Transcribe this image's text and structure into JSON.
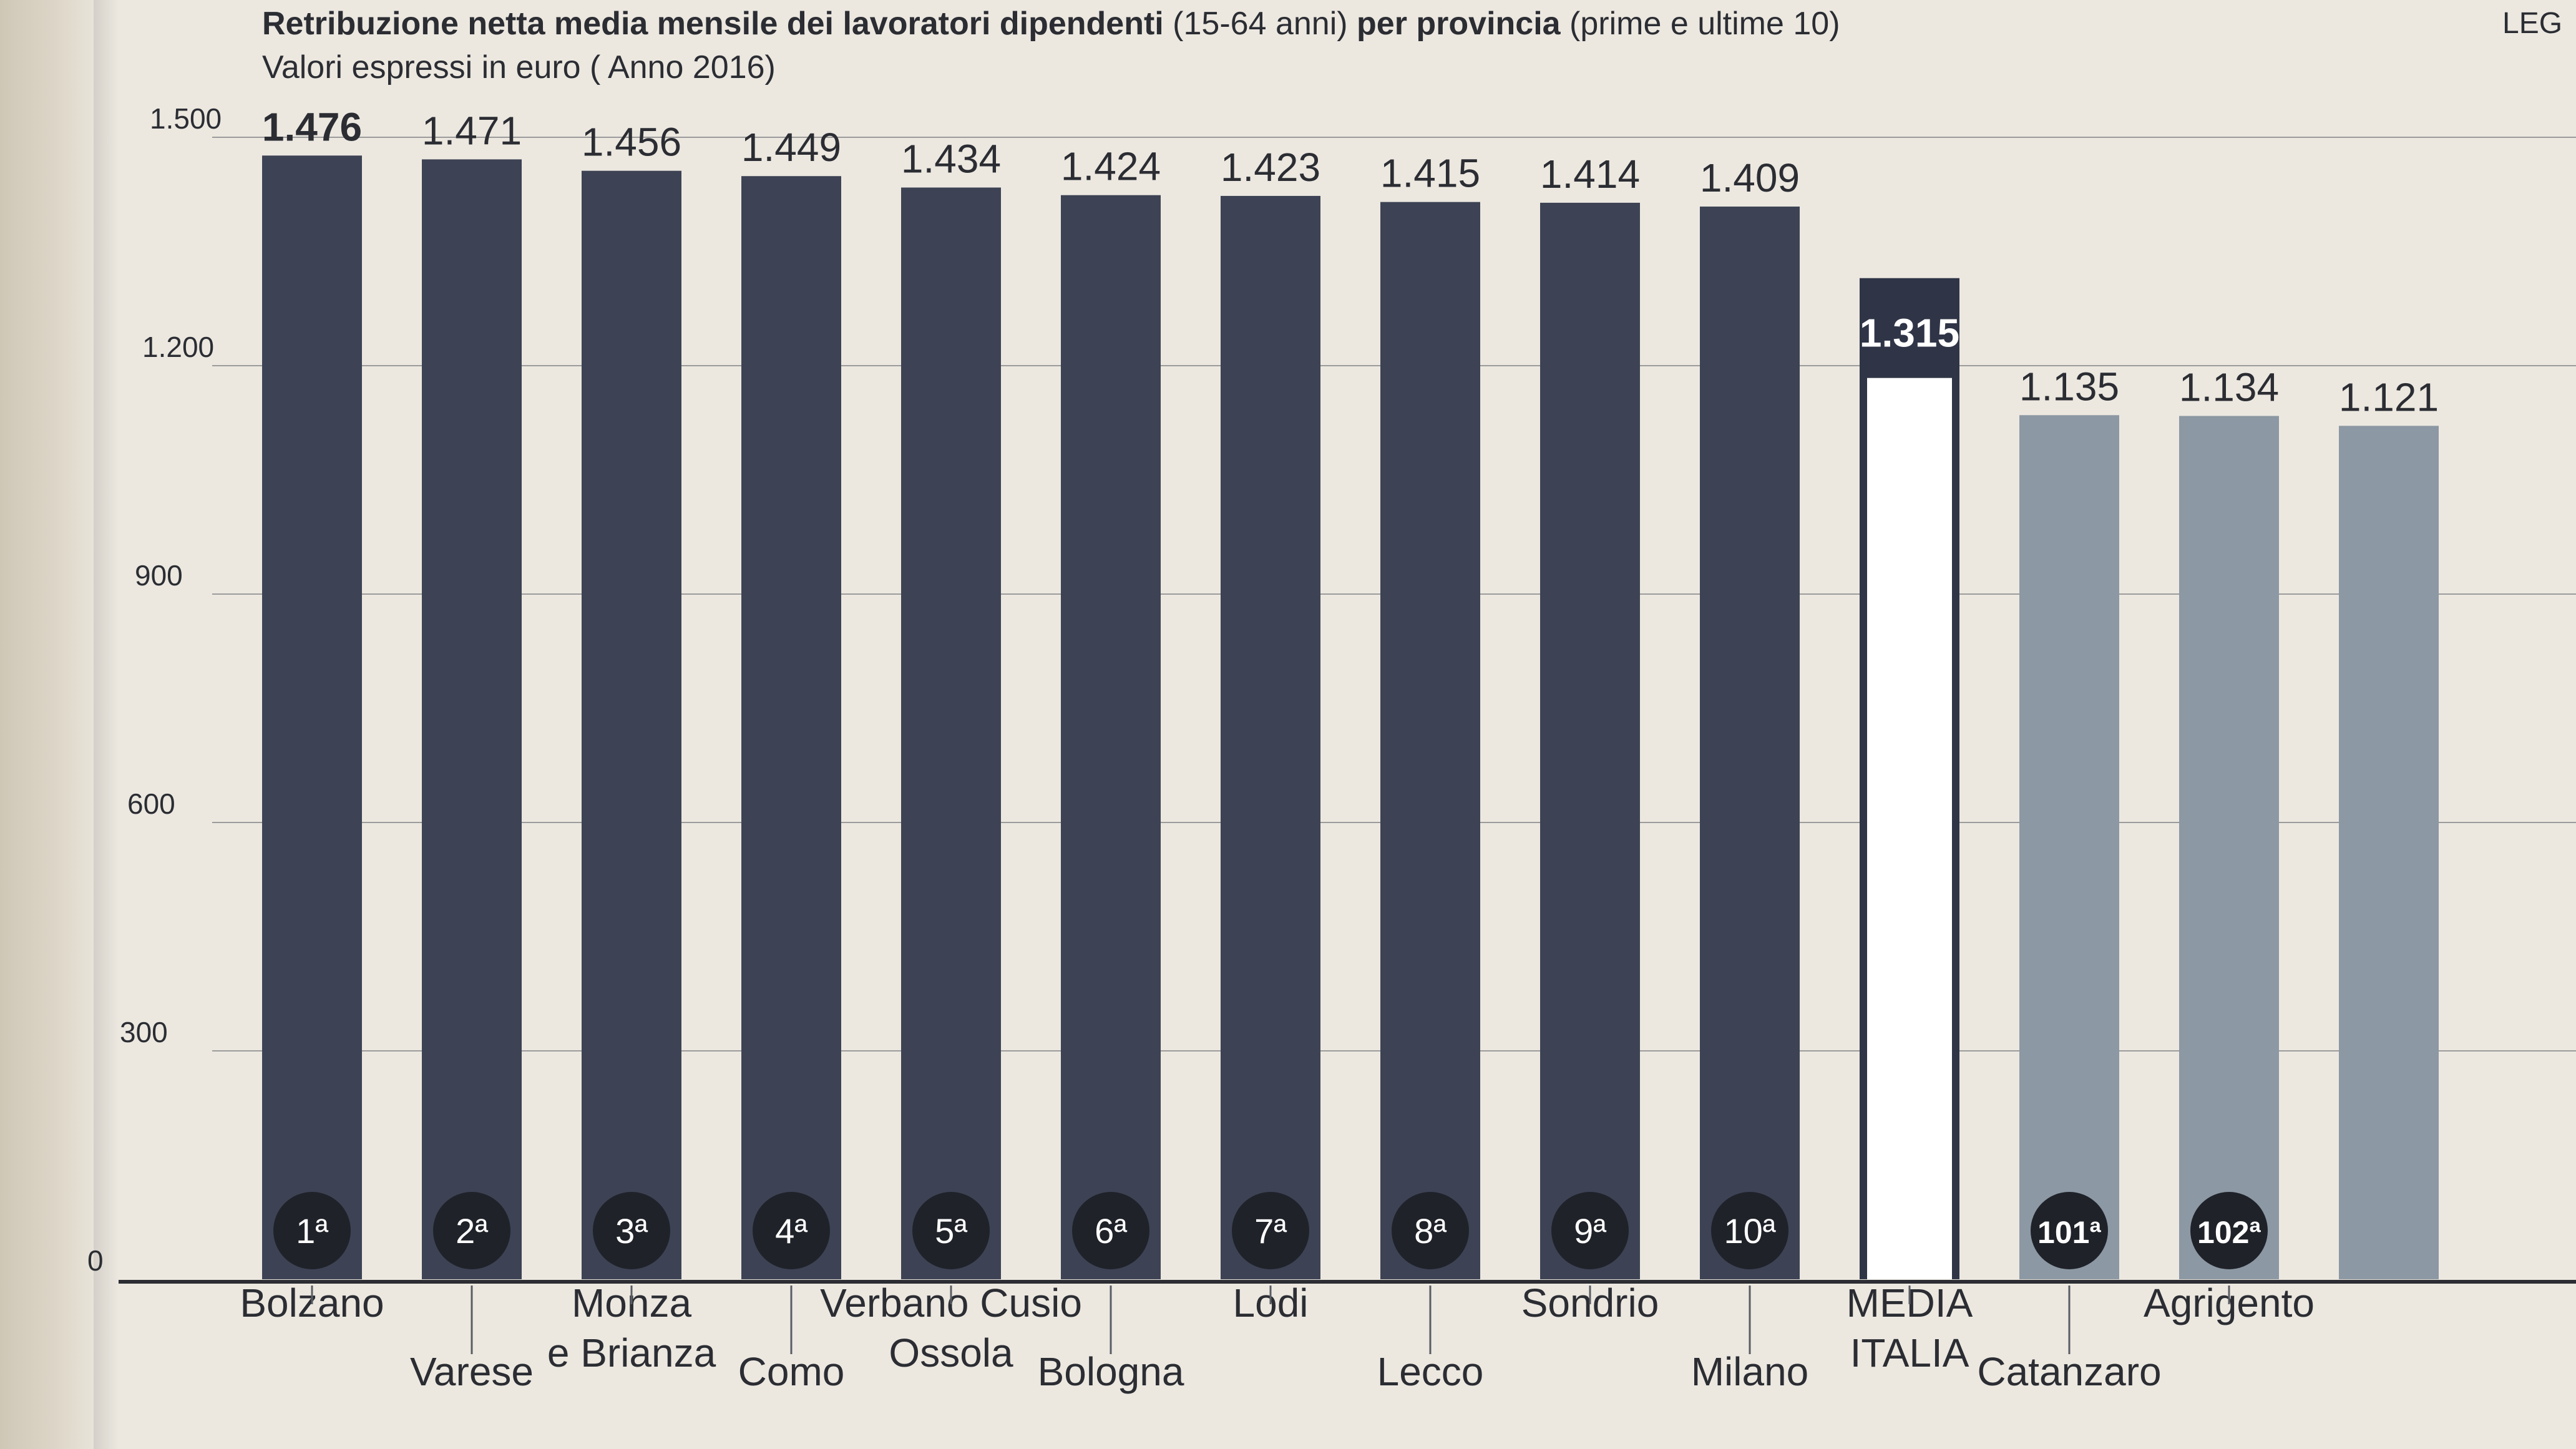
{
  "header": {
    "title_part1": "Retribuzione netta media mensile dei lavoratori dipendenti",
    "title_part2": " (15-64 anni) ",
    "title_part3": "per provincia",
    "title_part4": " (prime e ultime 10)",
    "subtitle": "Valori espressi in euro ( Anno 2016)",
    "corner_tag": "LEG"
  },
  "chart_data": {
    "type": "bar",
    "title": "Retribuzione netta media mensile dei lavoratori dipendenti (15-64 anni) per provincia (prime e ultime 10)",
    "subtitle": "Valori espressi in euro ( Anno 2016)",
    "ylim": [
      0,
      1500
    ],
    "y_ticks": [
      0,
      300,
      600,
      900,
      1200,
      1500
    ],
    "y_tick_labels": [
      "0",
      "300",
      "600",
      "900",
      "1.200",
      "1.500"
    ],
    "grid": true,
    "legend": "none",
    "colors": {
      "top10": "#3d4354",
      "media": "#2f3547",
      "media_fill": "#ffffff",
      "bottom": "#8c98a3",
      "badge": "#1f2229",
      "badge_text": "#ffffff"
    },
    "bars": [
      {
        "category": "Bolzano",
        "value": 1476,
        "label": "1.476",
        "rank": "1ª",
        "group": "top10"
      },
      {
        "category": "Varese",
        "value": 1471,
        "label": "1.471",
        "rank": "2ª",
        "group": "top10"
      },
      {
        "category": "Monza e Brianza",
        "value": 1456,
        "label": "1.456",
        "rank": "3ª",
        "group": "top10"
      },
      {
        "category": "Como",
        "value": 1449,
        "label": "1.449",
        "rank": "4ª",
        "group": "top10"
      },
      {
        "category": "Verbano Cusio Ossola",
        "value": 1434,
        "label": "1.434",
        "rank": "5ª",
        "group": "top10"
      },
      {
        "category": "Bologna",
        "value": 1424,
        "label": "1.424",
        "rank": "6ª",
        "group": "top10"
      },
      {
        "category": "Lodi",
        "value": 1423,
        "label": "1.423",
        "rank": "7ª",
        "group": "top10"
      },
      {
        "category": "Lecco",
        "value": 1415,
        "label": "1.415",
        "rank": "8ª",
        "group": "top10"
      },
      {
        "category": "Sondrio",
        "value": 1414,
        "label": "1.414",
        "rank": "9ª",
        "group": "top10"
      },
      {
        "category": "Milano",
        "value": 1409,
        "label": "1.409",
        "rank": "10ª",
        "group": "top10"
      },
      {
        "category": "MEDIA ITALIA",
        "value": 1315,
        "label": "1.315",
        "rank": "",
        "group": "media"
      },
      {
        "category": "Catanzaro",
        "value": 1135,
        "label": "1.135",
        "rank": "101ª",
        "group": "bottom"
      },
      {
        "category": "Agrigento",
        "value": 1134,
        "label": "1.134",
        "rank": "102ª",
        "group": "bottom"
      },
      {
        "category": "",
        "value": 1121,
        "label": "1.121",
        "rank": "",
        "group": "bottom"
      }
    ]
  }
}
